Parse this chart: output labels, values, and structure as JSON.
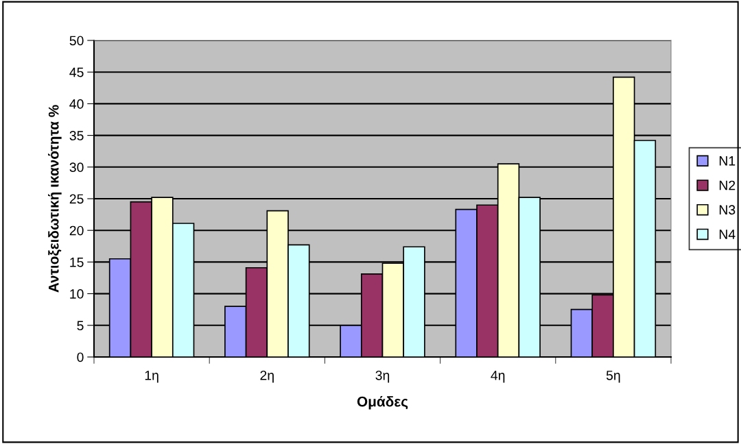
{
  "chart_data": {
    "type": "bar",
    "xlabel": "Ομάδες",
    "ylabel": "Αντιοξειδωτική ικανότητα %",
    "categories": [
      "1η",
      "2η",
      "3η",
      "4η",
      "5η"
    ],
    "series": [
      {
        "name": "N1",
        "color": "#9999ff",
        "values": [
          15.5,
          8.0,
          5.0,
          23.3,
          7.5
        ]
      },
      {
        "name": "N2",
        "color": "#993366",
        "values": [
          24.5,
          14.1,
          13.1,
          24.0,
          9.8
        ]
      },
      {
        "name": "N3",
        "color": "#ffffcc",
        "values": [
          25.2,
          23.1,
          14.8,
          30.5,
          44.2
        ]
      },
      {
        "name": "N4",
        "color": "#ccffff",
        "values": [
          21.1,
          17.7,
          17.4,
          25.2,
          34.2
        ]
      }
    ],
    "ylim": [
      0,
      50
    ],
    "yticks": [
      0,
      5,
      10,
      15,
      20,
      25,
      30,
      35,
      40,
      45,
      50
    ],
    "grid": "y",
    "legend": "right"
  }
}
